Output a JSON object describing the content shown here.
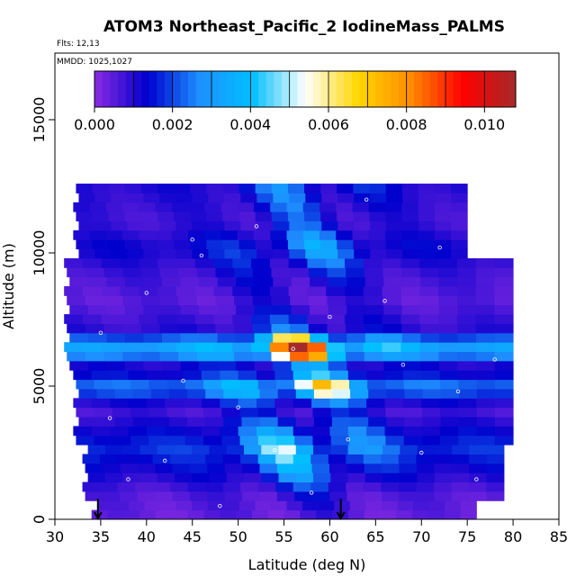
{
  "chart_data": {
    "type": "heatmap",
    "title": "ATOM3 Northeast_Pacific_2 IodineMass_PALMS",
    "flights_note": "Flts: 12,13",
    "dates_note": "MMDD: 1025,1027",
    "xlabel": "Latitude (deg N)",
    "ylabel": "Altitude (m)",
    "xlim": [
      30,
      85
    ],
    "ylim": [
      0,
      17500
    ],
    "x_ticks": [
      "30",
      "35",
      "40",
      "45",
      "50",
      "55",
      "60",
      "65",
      "70",
      "75",
      "80",
      "85"
    ],
    "y_ticks": [
      "0",
      "5000",
      "10000",
      "15000"
    ],
    "colorbar": {
      "range": [
        0,
        0.0108
      ],
      "tick_labels": [
        "0.000",
        "0.002",
        "0.004",
        "0.006",
        "0.008",
        "0.010"
      ],
      "colors": [
        "#8a2be2",
        "#0000cd",
        "#1e90ff",
        "#00bfff",
        "#ffffff",
        "#ffd700",
        "#ff8c00",
        "#ff0000",
        "#a52a2a"
      ]
    },
    "arrows_latitude": [
      34.7,
      61.2
    ],
    "alt_bin_m": 350,
    "profile": [
      [
        0,
        600,
        34,
        76
      ],
      [
        1000,
        2500,
        33,
        79
      ],
      [
        3000,
        5500,
        32,
        80
      ],
      [
        6000,
        9500,
        31,
        80
      ],
      [
        10000,
        12500,
        32,
        75
      ]
    ],
    "field": [
      [
        0,
        0.0005
      ],
      [
        800,
        0.001
      ],
      [
        1500,
        0.0025
      ],
      [
        2500,
        0.0045
      ],
      [
        3200,
        0.003
      ],
      [
        4000,
        0.0012
      ],
      [
        4800,
        0.0068
      ],
      [
        5500,
        0.0015
      ],
      [
        6200,
        0.0095
      ],
      [
        7000,
        0.002
      ],
      [
        8000,
        0.0008
      ],
      [
        9000,
        0.0015
      ],
      [
        10000,
        0.003
      ],
      [
        11000,
        0.0015
      ],
      [
        12500,
        0.0025
      ]
    ],
    "observations": [
      [
        38,
        1500
      ],
      [
        42,
        2200
      ],
      [
        36,
        3800
      ],
      [
        44,
        5200
      ],
      [
        35,
        7000
      ],
      [
        40,
        8500
      ],
      [
        46,
        9900
      ],
      [
        52,
        11000
      ],
      [
        58,
        1000
      ],
      [
        62,
        3000
      ],
      [
        56,
        6400
      ],
      [
        70,
        2500
      ],
      [
        74,
        4800
      ],
      [
        66,
        8200
      ],
      [
        72,
        10200
      ],
      [
        78,
        6000
      ],
      [
        50,
        4200
      ],
      [
        54,
        2600
      ],
      [
        60,
        7600
      ],
      [
        64,
        12000
      ],
      [
        48,
        500
      ],
      [
        76,
        1500
      ],
      [
        68,
        5800
      ],
      [
        45,
        10500
      ]
    ]
  }
}
